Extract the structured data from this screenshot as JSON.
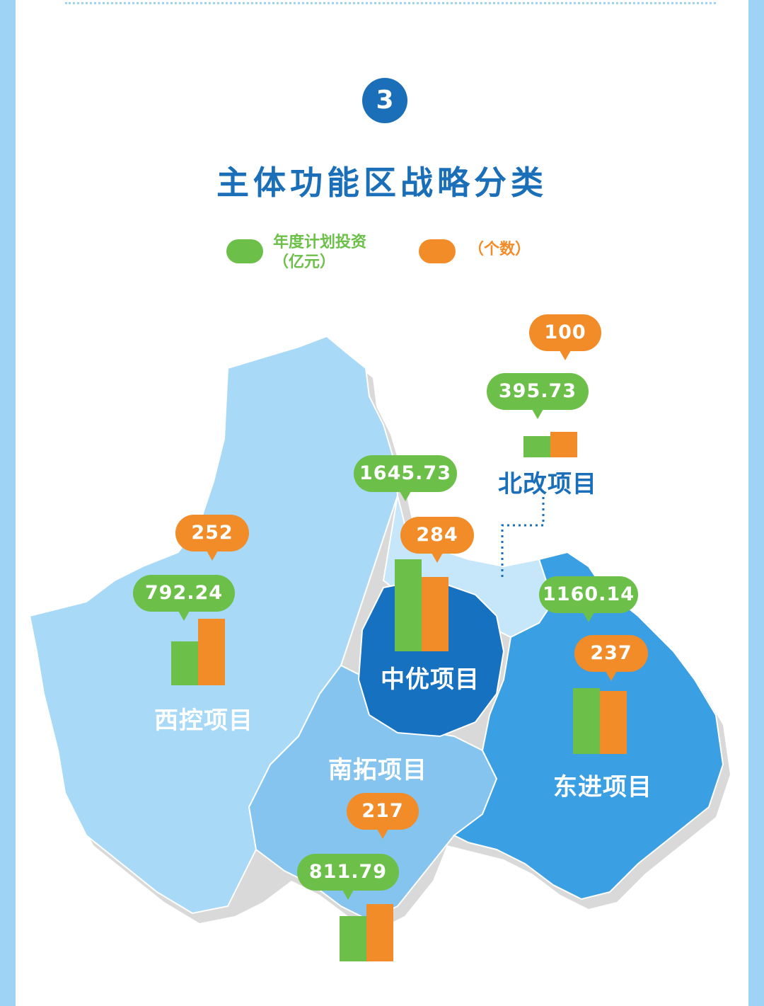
{
  "step_number": "3",
  "title": "主体功能区战略分类",
  "legend": {
    "investment_label": "年度计划投资",
    "investment_unit": "（亿元）",
    "count_label": "（个数）",
    "investment_color": "#6cc04a",
    "count_color": "#f28c28"
  },
  "regions": [
    {
      "id": "xikong",
      "name": "西控项目",
      "investment": "792.24",
      "count": "252"
    },
    {
      "id": "zhongyou",
      "name": "中优项目",
      "investment": "1645.73",
      "count": "284"
    },
    {
      "id": "beigai",
      "name": "北改项目",
      "investment": "395.73",
      "count": "100"
    },
    {
      "id": "dongjin",
      "name": "东进项目",
      "investment": "1160.14",
      "count": "237"
    },
    {
      "id": "nantuo",
      "name": "南拓项目",
      "investment": "811.79",
      "count": "217"
    }
  ],
  "colors": {
    "xikong": "#a8d9f6",
    "nantuo": "#84c4ee",
    "zhongyou": "#1672c0",
    "dongjin": "#3a9fe3",
    "beigai": "#c6e6fa",
    "title": "#1a6fb8"
  }
}
